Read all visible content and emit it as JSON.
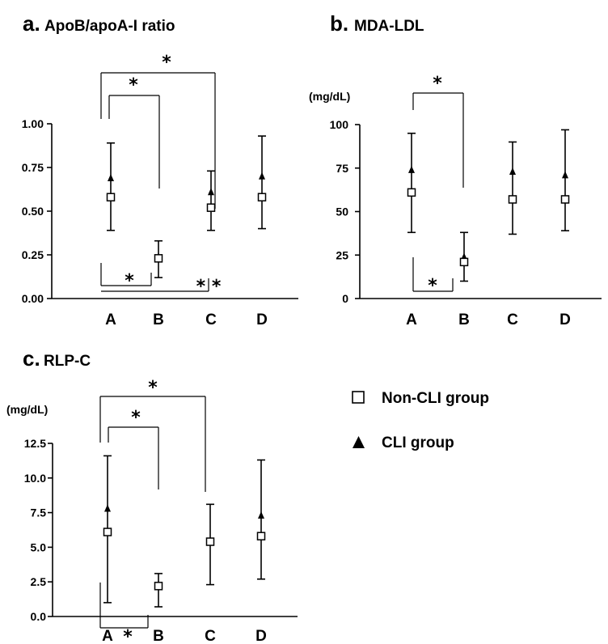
{
  "legend": [
    {
      "label": "Non-CLI group",
      "marker": "open-square-icon"
    },
    {
      "label": "CLI group",
      "marker": "filled-triangle-icon"
    }
  ],
  "chart_data": [
    {
      "type": "scatter",
      "panel": "a.",
      "title": "ApoB/apoA-I ratio",
      "ylabel": "",
      "categories": [
        "A",
        "B",
        "C",
        "D"
      ],
      "ylim": [
        0,
        1.0
      ],
      "yticks": [
        "0.00",
        "0.25",
        "0.50",
        "0.75",
        "1.00"
      ],
      "series": [
        {
          "name": "Non-CLI group",
          "marker": "open-square",
          "values": [
            0.58,
            0.23,
            0.52,
            0.58
          ],
          "err_low": [
            0.39,
            0.12,
            0.39,
            0.4
          ],
          "err_high": [
            null,
            0.33,
            null,
            null
          ]
        },
        {
          "name": "CLI group",
          "marker": "filled-triangle",
          "values": [
            0.69,
            0.24,
            0.61,
            0.7
          ],
          "err_low": [
            null,
            null,
            null,
            null
          ],
          "err_high": [
            0.89,
            null,
            0.73,
            0.93
          ]
        }
      ],
      "significance": [
        {
          "groups": [
            "A",
            "C"
          ],
          "label": "*",
          "position": "above"
        },
        {
          "groups": [
            "A",
            "B"
          ],
          "label": "*",
          "position": "above"
        },
        {
          "groups": [
            "A",
            "B"
          ],
          "label": "*",
          "position": "below"
        },
        {
          "groups": [
            "A",
            "C"
          ],
          "label": "* *",
          "position": "below"
        }
      ]
    },
    {
      "type": "scatter",
      "panel": "b.",
      "title": "MDA-LDL",
      "ylabel": "(mg/dL)",
      "categories": [
        "A",
        "B",
        "C",
        "D"
      ],
      "ylim": [
        0,
        100
      ],
      "yticks": [
        "0",
        "25",
        "50",
        "75",
        "100"
      ],
      "series": [
        {
          "name": "Non-CLI group",
          "marker": "open-square",
          "values": [
            61,
            21,
            57,
            57
          ],
          "err_low": [
            38,
            10,
            37,
            39
          ],
          "err_high": [
            null,
            null,
            null,
            null
          ]
        },
        {
          "name": "CLI group",
          "marker": "filled-triangle",
          "values": [
            74,
            24,
            73,
            71
          ],
          "err_low": [
            null,
            null,
            null,
            null
          ],
          "err_high": [
            95,
            38,
            90,
            97
          ]
        }
      ],
      "significance": [
        {
          "groups": [
            "A",
            "B"
          ],
          "label": "*",
          "position": "above"
        },
        {
          "groups": [
            "A",
            "B"
          ],
          "label": "*",
          "position": "below"
        }
      ]
    },
    {
      "type": "scatter",
      "panel": "c.",
      "title": "RLP-C",
      "ylabel": "(mg/dL)",
      "categories": [
        "A",
        "B",
        "C",
        "D"
      ],
      "ylim": [
        0,
        12.5
      ],
      "yticks": [
        "0.0",
        "2.5",
        "5.0",
        "7.5",
        "10.0",
        "12.5"
      ],
      "series": [
        {
          "name": "Non-CLI group",
          "marker": "open-square",
          "values": [
            6.1,
            2.2,
            5.4,
            5.8
          ],
          "err_low": [
            1.0,
            0.7,
            2.3,
            2.7
          ],
          "err_high": [
            null,
            null,
            null,
            null
          ]
        },
        {
          "name": "CLI group",
          "marker": "filled-triangle",
          "values": [
            7.8,
            2.3,
            5.5,
            7.3
          ],
          "err_low": [
            null,
            null,
            null,
            null
          ],
          "err_high": [
            11.6,
            3.1,
            8.1,
            11.3
          ]
        }
      ],
      "significance": [
        {
          "groups": [
            "A",
            "C"
          ],
          "label": "*",
          "position": "above"
        },
        {
          "groups": [
            "A",
            "B"
          ],
          "label": "*",
          "position": "above"
        },
        {
          "groups": [
            "A",
            "B"
          ],
          "label": "*",
          "position": "below"
        }
      ]
    }
  ]
}
